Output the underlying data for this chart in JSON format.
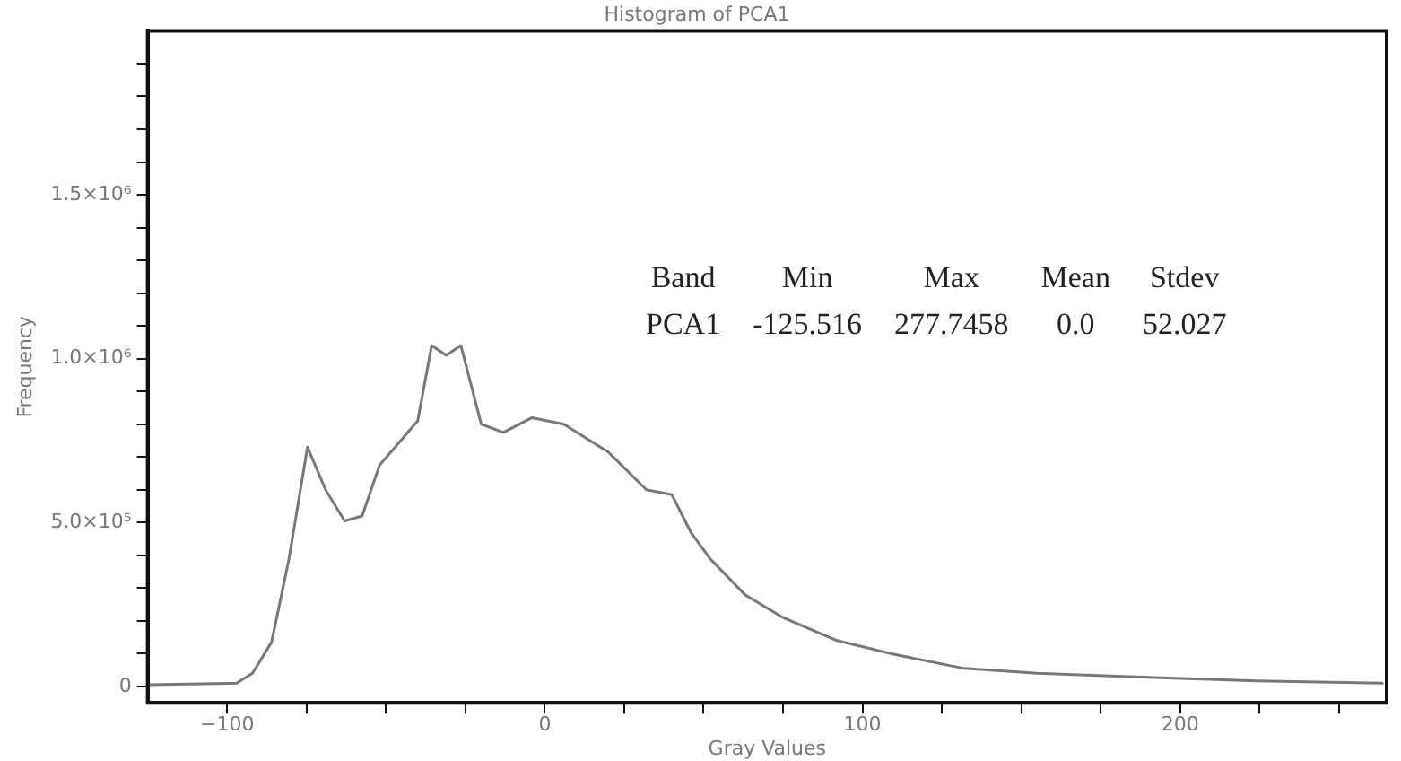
{
  "chart_data": {
    "type": "line",
    "title": "Histogram of PCA1",
    "xlabel": "Gray Values",
    "ylabel": "Frequency",
    "x": [
      -125,
      -97,
      -92,
      -86,
      -80.5,
      -74.7,
      -69,
      -63,
      -57.5,
      -52,
      -40,
      -35.6,
      -31,
      -26.4,
      -20,
      -13,
      -4,
      6,
      20,
      32,
      40,
      46,
      52,
      63,
      75,
      92,
      109,
      132,
      155,
      190,
      224,
      264
    ],
    "series": [
      {
        "color": "#777777",
        "values": [
          5000,
          10000,
          40000,
          135000,
          390000,
          730000,
          600000,
          505000,
          520000,
          675000,
          810000,
          1040000,
          1010000,
          1040000,
          800000,
          775000,
          820000,
          800000,
          715000,
          600000,
          585000,
          470000,
          390000,
          280000,
          210000,
          140000,
          100000,
          55000,
          40000,
          28000,
          17000,
          10000
        ]
      }
    ],
    "xlim": [
      -125,
      265
    ],
    "xticks": [
      {
        "value": -100,
        "label": "−100"
      },
      {
        "value": -75,
        "label": null
      },
      {
        "value": -50,
        "label": null
      },
      {
        "value": -25,
        "label": null
      },
      0,
      {
        "value": 25,
        "label": null
      },
      {
        "value": 50,
        "label": null
      },
      {
        "value": 75,
        "label": null
      },
      100,
      {
        "value": 125,
        "label": null
      },
      {
        "value": 150,
        "label": null
      },
      {
        "value": 175,
        "label": null
      },
      200,
      {
        "value": 225,
        "label": null
      },
      {
        "value": 250,
        "label": null
      }
    ],
    "ylim": [
      -50000,
      2000000
    ],
    "yticks": [
      {
        "value": 0,
        "label": "0"
      },
      {
        "value": 100000,
        "label": null
      },
      {
        "value": 200000,
        "label": null
      },
      {
        "value": 300000,
        "label": null
      },
      {
        "value": 400000,
        "label": null
      },
      {
        "value": 500000,
        "label": "5.0×10⁵"
      },
      {
        "value": 600000,
        "label": null
      },
      {
        "value": 700000,
        "label": null
      },
      {
        "value": 800000,
        "label": null
      },
      {
        "value": 900000,
        "label": null
      },
      {
        "value": 1000000,
        "label": "1.0×10⁶"
      },
      {
        "value": 1100000,
        "label": null
      },
      {
        "value": 1200000,
        "label": null
      },
      {
        "value": 1300000,
        "label": null
      },
      {
        "value": 1400000,
        "label": null
      },
      {
        "value": 1500000,
        "label": "1.5×10⁶"
      },
      {
        "value": 1600000,
        "label": null
      },
      {
        "value": 1700000,
        "label": null
      },
      {
        "value": 1800000,
        "label": null
      },
      {
        "value": 1900000,
        "label": null
      }
    ],
    "annotations": [
      "Band",
      "Min",
      "Max",
      "Mean",
      "Stdev",
      "PCA1",
      "-125.516",
      "277.7458",
      "0.0",
      "52.027"
    ],
    "marker": "none",
    "line_style": "solid",
    "legend": false
  }
}
